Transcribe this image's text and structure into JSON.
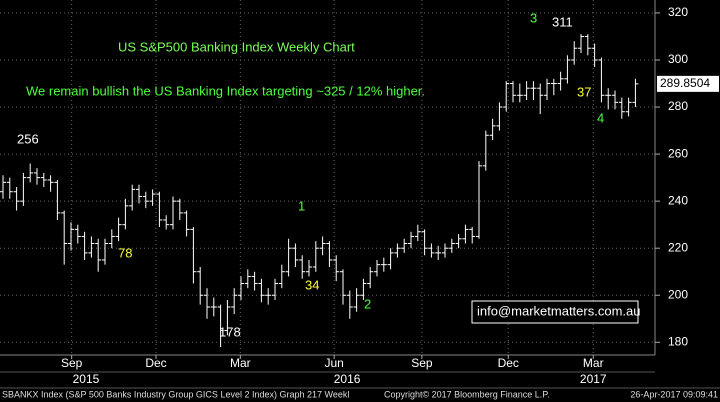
{
  "chart_data": {
    "type": "ohlc",
    "title": "US S&P500 Banking Index Weekly Chart",
    "subtitle": "We remain bullish the US Banking Index targeting ~325 / 12% higher.",
    "color": "#ffffff",
    "grid": true,
    "open": [
      244,
      248,
      244,
      240,
      250,
      252,
      250,
      249,
      248,
      235,
      222,
      228,
      225,
      218,
      222,
      215,
      222,
      225,
      230,
      238,
      245,
      242,
      240,
      243,
      232,
      230,
      240,
      235,
      228,
      210,
      200,
      195,
      195,
      185,
      195,
      200,
      205,
      208,
      205,
      200,
      200,
      205,
      210,
      220,
      215,
      210,
      212,
      220,
      222,
      215,
      210,
      200,
      195,
      200,
      205,
      210,
      213,
      213,
      218,
      220,
      222,
      225,
      227,
      220,
      218,
      218,
      220,
      222,
      224,
      228,
      225,
      255,
      268,
      272,
      280,
      290,
      285,
      285,
      288,
      288,
      285,
      290,
      290,
      292,
      300,
      305,
      310,
      305,
      300,
      285,
      285,
      282,
      278,
      282
    ],
    "high": [
      251,
      250,
      246,
      252,
      256,
      254,
      252,
      251,
      249,
      236,
      231,
      230,
      227,
      225,
      224,
      224,
      228,
      233,
      241,
      247,
      247,
      244,
      245,
      244,
      234,
      242,
      241,
      236,
      229,
      212,
      203,
      199,
      196,
      198,
      203,
      208,
      211,
      210,
      207,
      203,
      207,
      213,
      224,
      222,
      217,
      215,
      223,
      225,
      223,
      217,
      211,
      202,
      203,
      207,
      212,
      215,
      216,
      220,
      222,
      224,
      227,
      230,
      228,
      222,
      221,
      222,
      224,
      226,
      230,
      229,
      257,
      270,
      275,
      282,
      291,
      291,
      290,
      291,
      291,
      290,
      292,
      292,
      295,
      302,
      308,
      311,
      311,
      307,
      301,
      288,
      287,
      284,
      284,
      292
    ],
    "low": [
      241,
      241,
      236,
      238,
      248,
      247,
      246,
      244,
      232,
      213,
      219,
      222,
      215,
      216,
      210,
      213,
      220,
      223,
      228,
      236,
      239,
      237,
      238,
      229,
      228,
      228,
      232,
      225,
      205,
      196,
      190,
      191,
      178,
      183,
      192,
      198,
      203,
      202,
      197,
      196,
      198,
      203,
      208,
      212,
      207,
      208,
      210,
      217,
      212,
      206,
      196,
      190,
      193,
      198,
      203,
      208,
      210,
      211,
      216,
      218,
      220,
      223,
      217,
      216,
      215,
      216,
      218,
      220,
      222,
      222,
      224,
      253,
      266,
      270,
      278,
      282,
      282,
      283,
      283,
      277,
      283,
      285,
      287,
      290,
      298,
      303,
      302,
      297,
      282,
      279,
      279,
      275,
      276,
      280
    ],
    "close": [
      248,
      244,
      240,
      250,
      252,
      250,
      249,
      248,
      235,
      222,
      228,
      225,
      218,
      222,
      215,
      222,
      225,
      230,
      238,
      245,
      242,
      240,
      243,
      232,
      230,
      240,
      235,
      228,
      210,
      200,
      195,
      195,
      185,
      195,
      200,
      205,
      208,
      205,
      200,
      200,
      205,
      210,
      220,
      215,
      210,
      212,
      220,
      222,
      215,
      210,
      200,
      195,
      200,
      205,
      210,
      213,
      213,
      218,
      220,
      222,
      225,
      227,
      220,
      218,
      218,
      220,
      222,
      224,
      228,
      225,
      255,
      268,
      272,
      280,
      290,
      285,
      285,
      288,
      288,
      285,
      290,
      290,
      292,
      300,
      305,
      310,
      305,
      300,
      285,
      285,
      282,
      278,
      282,
      289.8504
    ],
    "xlim": [
      -0.44,
      95.88
    ],
    "xticks": [
      {
        "value": 10.1,
        "label": "Sep"
      },
      {
        "value": 22.5,
        "label": "Dec"
      },
      {
        "value": 34.9,
        "label": "Mar"
      },
      {
        "value": 48.7,
        "label": "Jun"
      },
      {
        "value": 61.6,
        "label": "Sep"
      },
      {
        "value": 74.3,
        "label": "Dec"
      },
      {
        "value": 86.8,
        "label": "Mar"
      }
    ],
    "years": [
      {
        "value": 12.2,
        "label": "2015"
      },
      {
        "value": 50.6,
        "label": "2016"
      },
      {
        "value": 86.8,
        "label": "2017"
      }
    ],
    "ylim": [
      174.6,
      325.5
    ],
    "yticks": [
      180,
      200,
      220,
      240,
      260,
      280,
      300,
      320
    ],
    "annotations": [
      "256",
      "78",
      "178",
      "1",
      "34",
      "2",
      "3",
      "311",
      "37",
      "4"
    ],
    "contact": "info@marketmatters.com.au",
    "footer_left": "SBANKX Index (S&P 500 Banks Industry Group GICS Level 2 Index) Graph 217  Weekl",
    "footer_mid": "Copyright© 2017 Bloomberg Finance L.P.",
    "footer_right": "26-Apr-2017 09:09:41"
  }
}
